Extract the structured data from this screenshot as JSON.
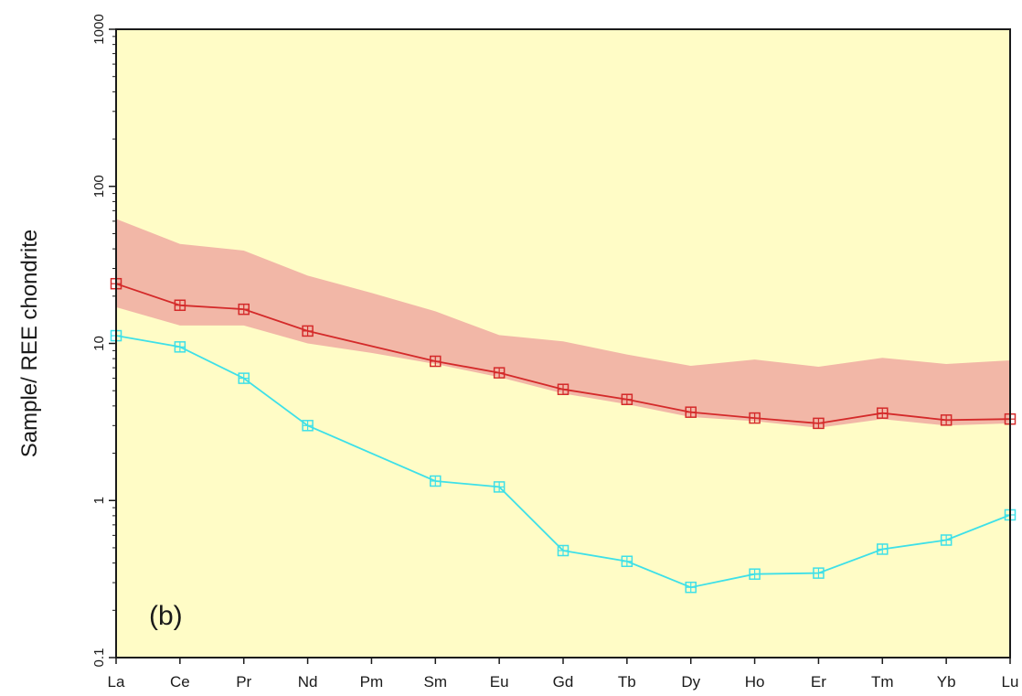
{
  "chart_data": {
    "type": "line",
    "ylabel": "Sample/ REE chondrite",
    "panel_label": "(b)",
    "yscale": "log",
    "ylim": [
      0.1,
      1000
    ],
    "yticks": [
      "0.1",
      "1",
      "10",
      "100",
      "1000"
    ],
    "categories": [
      "La",
      "Ce",
      "Pr",
      "Nd",
      "Pm",
      "Sm",
      "Eu",
      "Gd",
      "Tb",
      "Dy",
      "Ho",
      "Er",
      "Tm",
      "Yb",
      "Lu"
    ],
    "series": [
      {
        "color": "#d42a2a",
        "values": [
          24,
          17.5,
          16.5,
          12,
          null,
          7.7,
          6.5,
          5.1,
          4.4,
          3.65,
          3.35,
          3.1,
          3.6,
          3.25,
          3.3
        ]
      },
      {
        "color": "#3ee0e8",
        "values": [
          11.2,
          9.5,
          6.0,
          3.0,
          null,
          1.33,
          1.22,
          0.48,
          0.41,
          0.28,
          0.34,
          0.345,
          0.49,
          0.56,
          0.81
        ]
      }
    ],
    "band": {
      "color": "#f2b7a7",
      "upper": [
        62,
        43,
        39,
        27,
        21,
        16,
        11.3,
        10.3,
        8.5,
        7.2,
        7.9,
        7.1,
        8.1,
        7.4,
        7.8
      ],
      "lower": [
        17,
        13,
        13,
        10,
        8.7,
        7.4,
        6.1,
        4.8,
        4.1,
        3.4,
        3.2,
        2.9,
        3.3,
        3.0,
        3.1
      ]
    },
    "background_color": "#fffcc6",
    "grid": false
  }
}
